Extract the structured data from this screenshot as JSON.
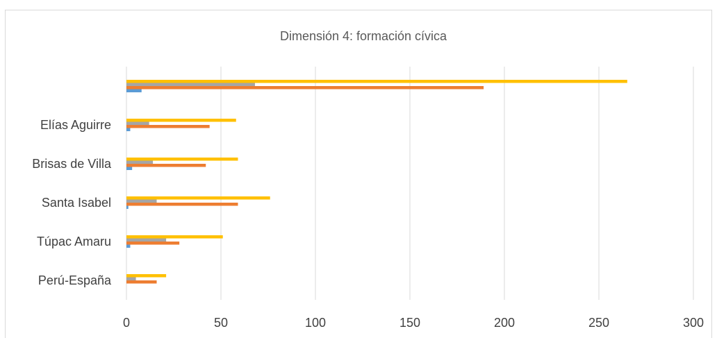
{
  "chart_data": {
    "type": "bar",
    "orientation": "horizontal",
    "title": "Dimensión 4: formación cívica",
    "categories": [
      "Perú-España",
      "Túpac Amaru",
      "Santa Isabel",
      "Brisas de Villa",
      "Elías Aguirre",
      ""
    ],
    "series": [
      {
        "color": "#5b9bd5",
        "values": [
          0,
          2,
          1,
          3,
          2,
          8
        ]
      },
      {
        "color": "#ed7d31",
        "values": [
          16,
          28,
          59,
          42,
          44,
          189
        ]
      },
      {
        "color": "#a5a5a5",
        "values": [
          5,
          21,
          16,
          14,
          12,
          68
        ]
      },
      {
        "color": "#ffc000",
        "values": [
          21,
          51,
          76,
          59,
          58,
          265
        ]
      }
    ],
    "xlim": [
      0,
      300
    ],
    "xticks": [
      0,
      50,
      100,
      150,
      200,
      250,
      300
    ],
    "grid": true,
    "legend": "none"
  }
}
